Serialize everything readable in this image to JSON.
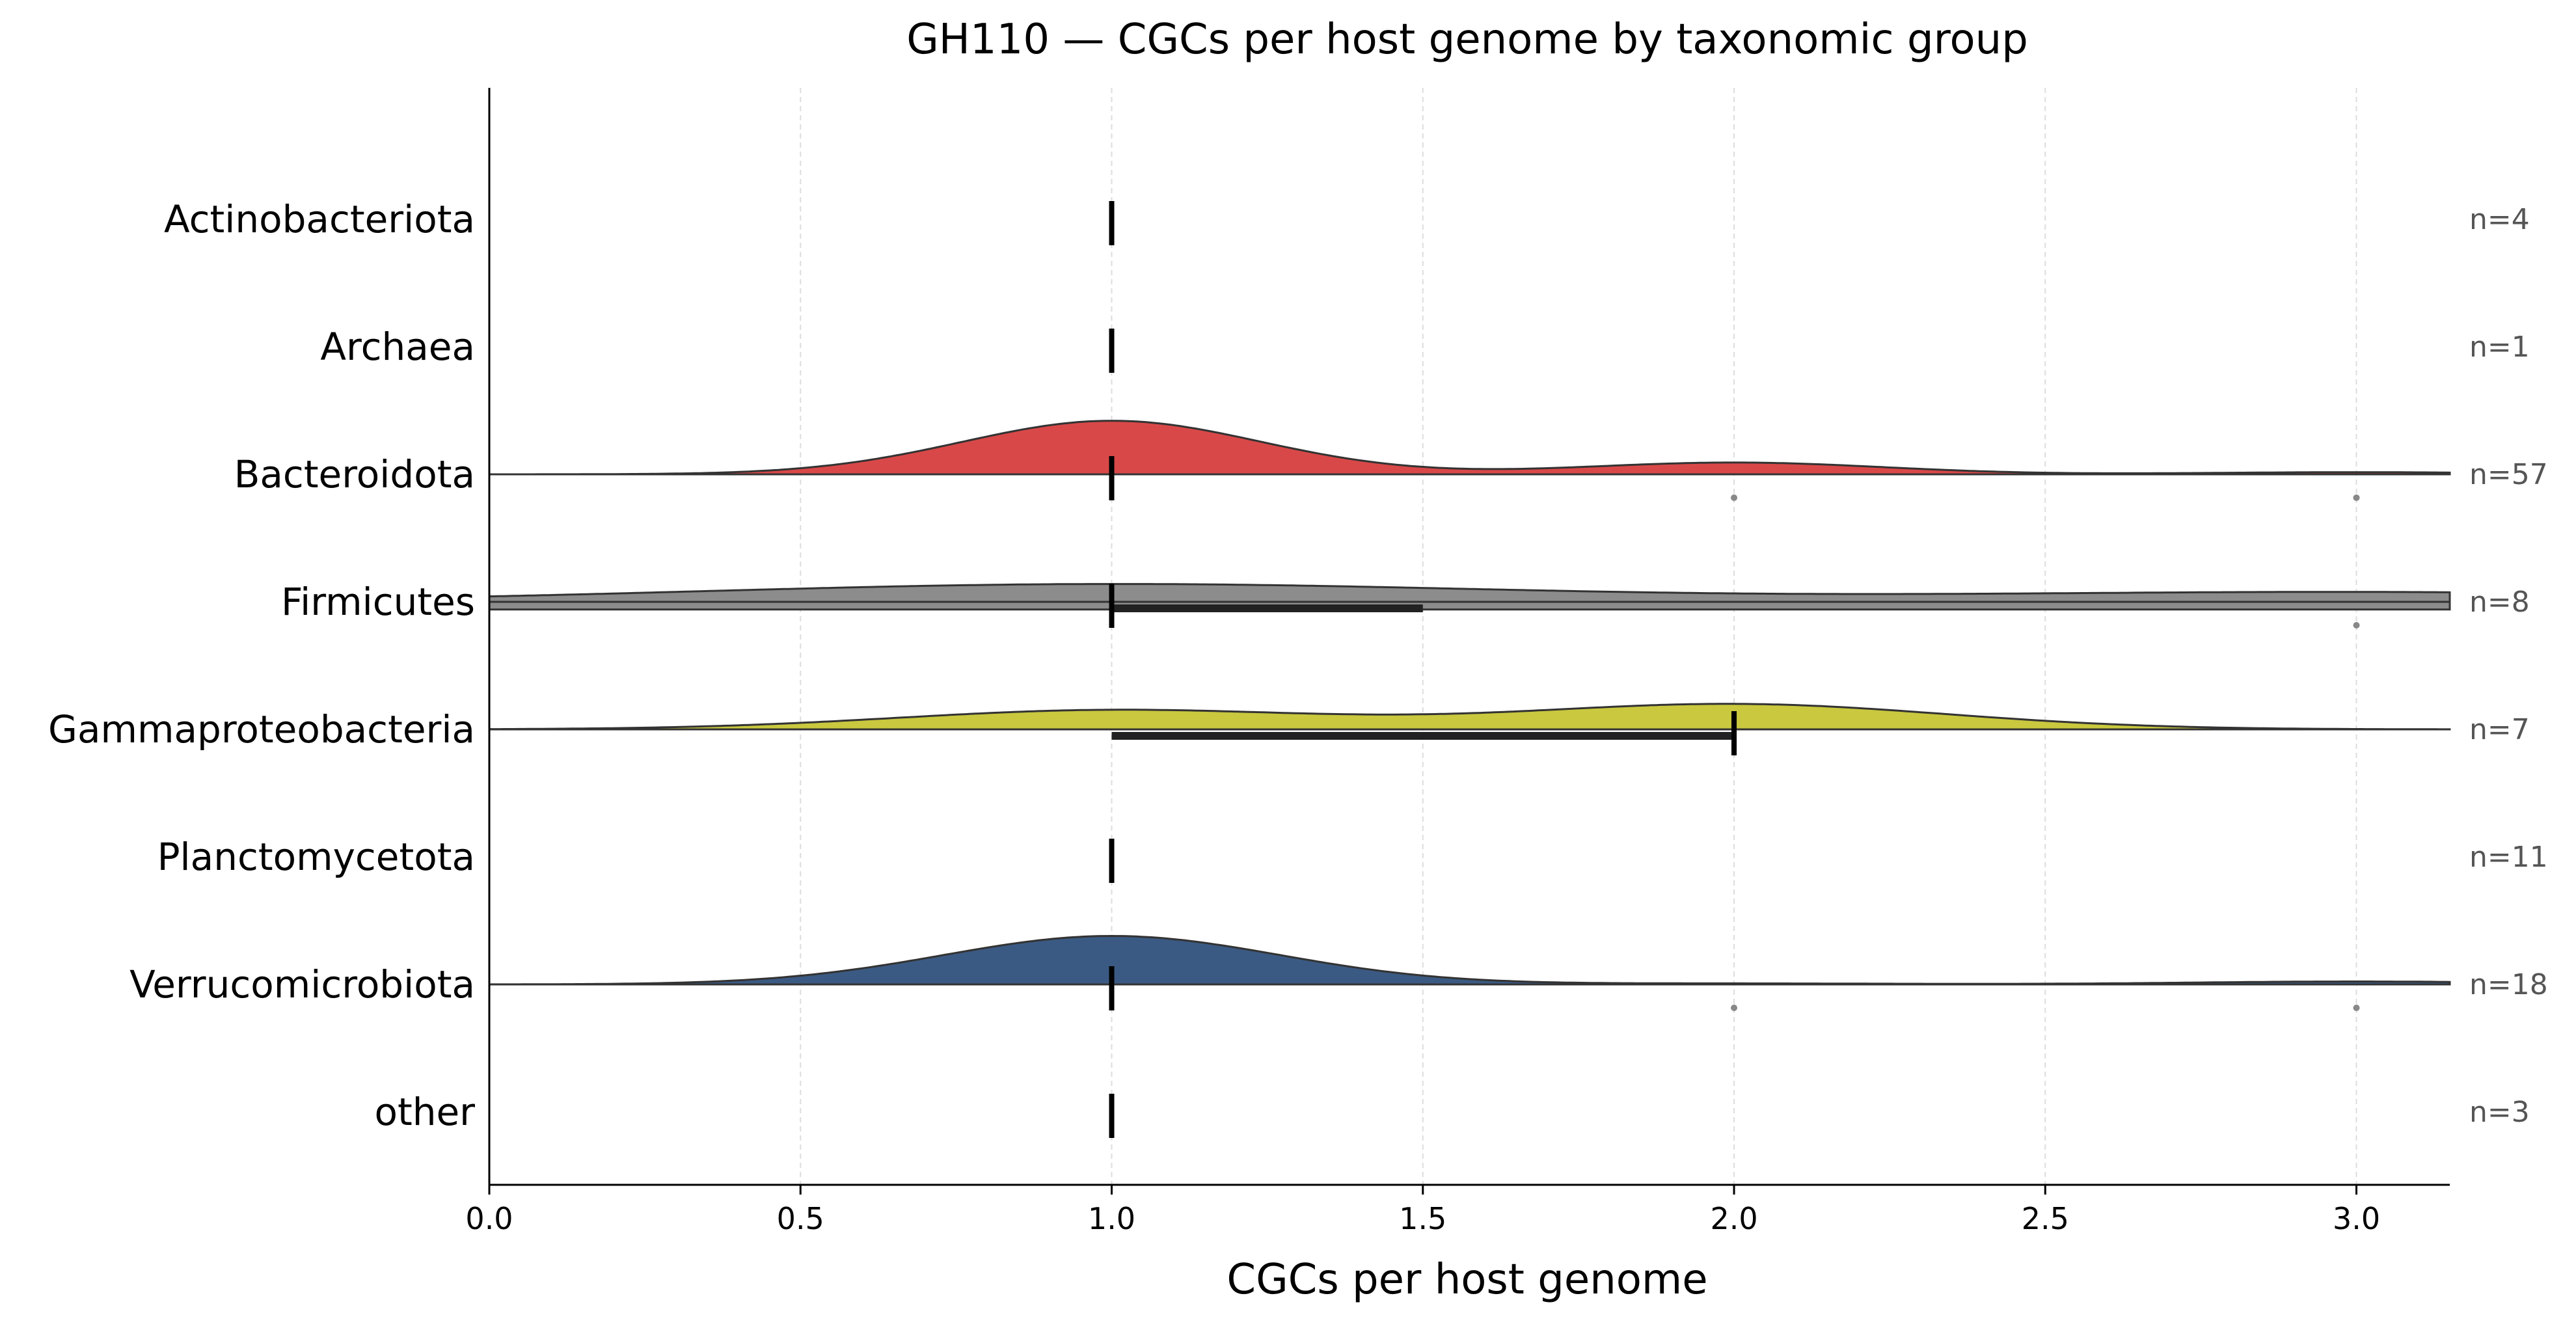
{
  "chart_data": {
    "type": "violin",
    "title": "GH110 — CGCs per host genome by taxonomic group",
    "xlabel": "CGCs per host genome",
    "ylabel": "",
    "xlim": [
      0.0,
      3.15
    ],
    "xticks": [
      0.0,
      0.5,
      1.0,
      1.5,
      2.0,
      2.5,
      3.0
    ],
    "xtick_labels": [
      "0.0",
      "0.5",
      "1.0",
      "1.5",
      "2.0",
      "2.5",
      "3.0"
    ],
    "grid": "x-dashed",
    "legend": "none",
    "groups": [
      {
        "label": "Actinobacteriota",
        "n_label": "n=4",
        "color": "",
        "median": 1.0,
        "q1": 1.0,
        "q3": 1.0,
        "density": null,
        "outliers": []
      },
      {
        "label": "Archaea",
        "n_label": "n=1",
        "color": "",
        "median": 1.0,
        "q1": 1.0,
        "q3": 1.0,
        "density": null,
        "outliers": []
      },
      {
        "label": "Bacteroidota",
        "n_label": "n=57",
        "color": "#d94848",
        "median": 1.0,
        "q1": 1.0,
        "q3": 1.0,
        "density": {
          "components": [
            [
              1.0,
              0.24,
              1.0
            ],
            [
              2.0,
              0.24,
              0.22
            ],
            [
              3.0,
              0.24,
              0.04
            ]
          ],
          "max_frac": 0.42
        },
        "outliers": [
          2.0,
          3.0
        ]
      },
      {
        "label": "Firmicutes",
        "n_label": "n=8",
        "color": "#8c8c8c",
        "median": 1.0,
        "q1": 1.0,
        "q3": 1.5,
        "density": {
          "components": [
            [
              1.0,
              0.65,
              1.0
            ],
            [
              3.0,
              0.65,
              0.55
            ]
          ],
          "max_frac": 0.14,
          "band_frac": 0.06
        },
        "outliers": [
          3.0
        ]
      },
      {
        "label": "Gammaproteobacteria",
        "n_label": "n=7",
        "color": "#c9c83f",
        "median": 2.0,
        "q1": 1.0,
        "q3": 2.0,
        "density": {
          "components": [
            [
              1.0,
              0.34,
              0.55
            ],
            [
              2.0,
              0.34,
              0.72
            ]
          ],
          "max_frac": 0.2
        },
        "outliers": []
      },
      {
        "label": "Planctomycetota",
        "n_label": "n=11",
        "color": "",
        "median": 1.0,
        "q1": 1.0,
        "q3": 1.0,
        "density": null,
        "outliers": []
      },
      {
        "label": "Verrucomicrobiota",
        "n_label": "n=18",
        "color": "#3b5a83",
        "median": 1.0,
        "q1": 1.0,
        "q3": 1.0,
        "density": {
          "components": [
            [
              1.0,
              0.27,
              1.0
            ],
            [
              3.0,
              0.27,
              0.06
            ],
            [
              2.0,
              0.27,
              0.02
            ]
          ],
          "max_frac": 0.38
        },
        "outliers": [
          2.0,
          3.0
        ]
      },
      {
        "label": "other",
        "n_label": "n=3",
        "color": "",
        "median": 1.0,
        "q1": 1.0,
        "q3": 1.0,
        "density": null,
        "outliers": []
      }
    ]
  }
}
